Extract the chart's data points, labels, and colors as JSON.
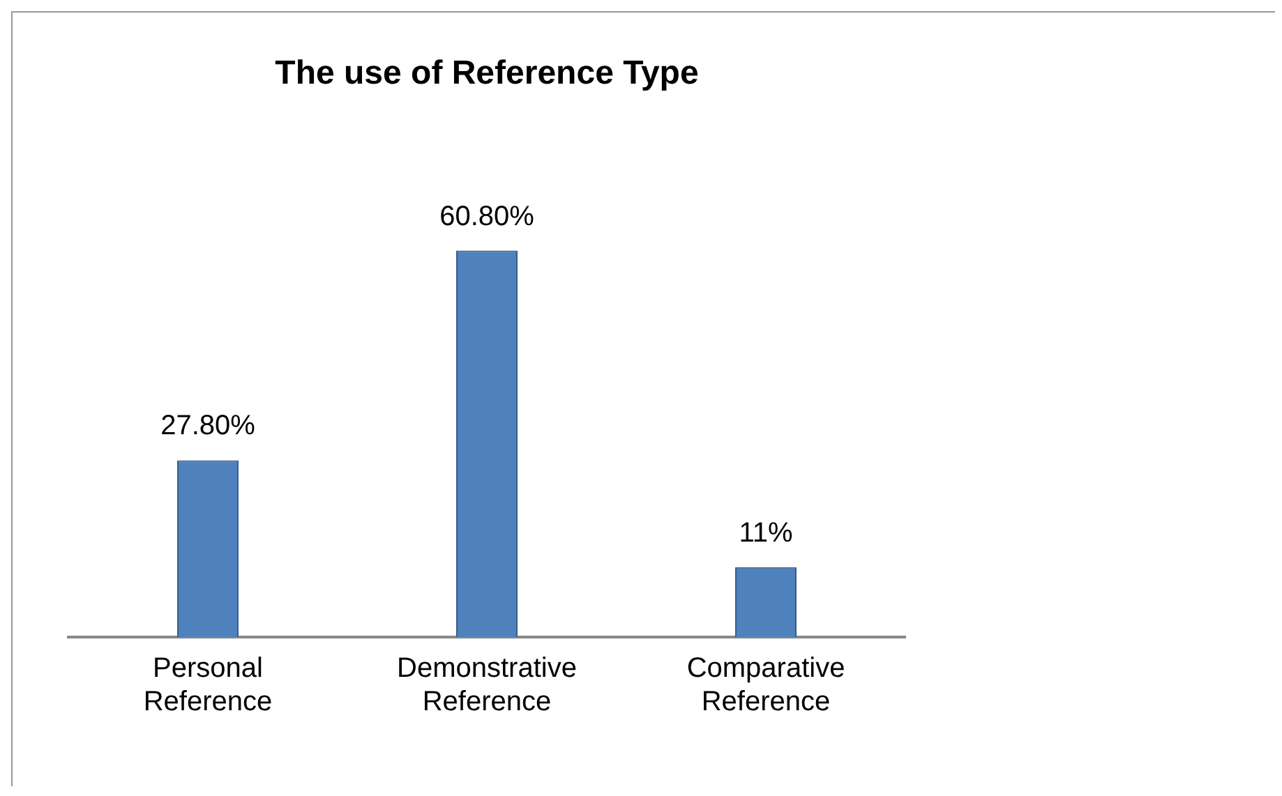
{
  "chart_data": {
    "type": "bar",
    "title": "The use of Reference Type",
    "categories": [
      "Personal Reference",
      "Demonstrative Reference",
      "Comparative Reference"
    ],
    "values": [
      27.8,
      60.8,
      11
    ],
    "value_labels": [
      "27.80%",
      "60.80%",
      "11%"
    ],
    "color": "#4f81bd",
    "grid": false,
    "legend": false
  }
}
